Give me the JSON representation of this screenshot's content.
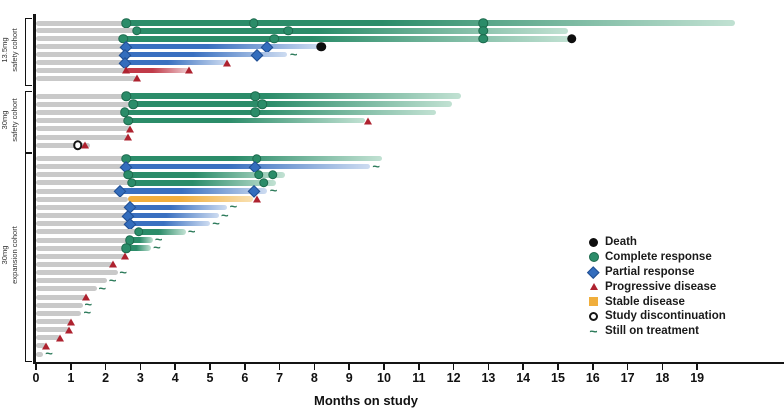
{
  "axis": {
    "xlabel": "Months on study",
    "x_ticks": [
      0,
      1,
      2,
      3,
      4,
      5,
      6,
      7,
      8,
      9,
      10,
      11,
      12,
      13,
      14,
      15,
      16,
      17,
      18,
      19
    ]
  },
  "cohort_labels": [
    {
      "line1": "13.5mg",
      "line2": "safety cohort"
    },
    {
      "line1": "30mg",
      "line2": "safety cohort"
    },
    {
      "line1": "30mg",
      "line2": "expansion cohort"
    }
  ],
  "legend": {
    "items": [
      {
        "marker": "death",
        "label": "Death"
      },
      {
        "marker": "cr",
        "label": "Complete response"
      },
      {
        "marker": "pr",
        "label": "Partial response"
      },
      {
        "marker": "pd",
        "label": "Progressive disease"
      },
      {
        "marker": "sd",
        "label": "Stable disease"
      },
      {
        "marker": "disc",
        "label": "Study discontinuation"
      },
      {
        "marker": "ontx",
        "label": "Still on treatment"
      }
    ]
  },
  "colors": {
    "complete_response": "#2b8c69",
    "partial_response": "#336dbd",
    "progressive_disease": "#ae222f",
    "stable_disease": "#f0ae3c",
    "pretreatment_gray": "#c9c9c9",
    "death": "#0e0e0e"
  },
  "chart_data": {
    "type": "swimmer",
    "xlabel": "Months on study",
    "xlim": [
      0,
      20.2
    ],
    "x_ticks": [
      0,
      1,
      2,
      3,
      4,
      5,
      6,
      7,
      8,
      9,
      10,
      11,
      12,
      13,
      14,
      15,
      16,
      17,
      18,
      19
    ],
    "marker_legend": {
      "cr": "Complete response",
      "pr": "Partial response",
      "pd": "Progressive disease",
      "sd": "Stable disease",
      "death": "Death",
      "disc": "Study discontinuation",
      "ontx": "Still on treatment"
    },
    "cohorts": [
      {
        "label": "13.5mg safety cohort",
        "patients": [
          {
            "pre": 2.6,
            "type": "cr",
            "end": 20.1,
            "ev": [
              {
                "t": "cr",
                "m": 2.6
              },
              {
                "t": "cr",
                "m": 6.25
              },
              {
                "t": "cr",
                "m": 12.85
              }
            ]
          },
          {
            "pre": 2.9,
            "type": "cr",
            "end": 15.3,
            "ev": [
              {
                "t": "cr",
                "m": 2.9
              },
              {
                "t": "cr",
                "m": 7.25
              },
              {
                "t": "cr",
                "m": 12.85
              }
            ]
          },
          {
            "pre": 2.5,
            "type": "cr",
            "end": 15.4,
            "ev": [
              {
                "t": "cr",
                "m": 2.5
              },
              {
                "t": "cr",
                "m": 6.85
              },
              {
                "t": "cr",
                "m": 12.85
              },
              {
                "t": "death",
                "m": 15.4
              }
            ]
          },
          {
            "pre": 2.6,
            "type": "pr",
            "end": 8.2,
            "ev": [
              {
                "t": "pr",
                "m": 2.6
              },
              {
                "t": "pr",
                "m": 6.65
              },
              {
                "t": "death",
                "m": 8.2
              }
            ]
          },
          {
            "pre": 2.55,
            "type": "pr",
            "end": 7.2,
            "ev": [
              {
                "t": "pr",
                "m": 2.55
              },
              {
                "t": "pr",
                "m": 6.35
              },
              {
                "t": "ontx",
                "m": 7.35
              }
            ]
          },
          {
            "pre": 2.55,
            "type": "pr",
            "end": 5.5,
            "ev": [
              {
                "t": "pr",
                "m": 2.55
              },
              {
                "t": "pd",
                "m": 5.5
              }
            ]
          },
          {
            "pre": 2.6,
            "type": "pd",
            "end": 4.4,
            "ev": [
              {
                "t": "pd",
                "m": 2.6
              },
              {
                "t": "pd",
                "m": 4.4
              }
            ]
          },
          {
            "pre": 2.9,
            "type": "none",
            "end": 2.9,
            "ev": [
              {
                "t": "pd",
                "m": 2.9
              }
            ]
          }
        ]
      },
      {
        "label": "30mg safety cohort",
        "patients": [
          {
            "pre": 2.6,
            "type": "cr",
            "end": 12.2,
            "ev": [
              {
                "t": "cr",
                "m": 2.6
              },
              {
                "t": "cr",
                "m": 6.3
              }
            ]
          },
          {
            "pre": 2.8,
            "type": "cr",
            "end": 11.95,
            "ev": [
              {
                "t": "cr",
                "m": 2.8
              },
              {
                "t": "cr",
                "m": 6.5
              }
            ]
          },
          {
            "pre": 2.55,
            "type": "cr",
            "end": 11.5,
            "ev": [
              {
                "t": "cr",
                "m": 2.55
              },
              {
                "t": "cr",
                "m": 6.3
              }
            ]
          },
          {
            "pre": 2.65,
            "type": "cr",
            "end": 9.45,
            "ev": [
              {
                "t": "cr",
                "m": 2.65
              },
              {
                "t": "pd",
                "m": 9.55
              }
            ]
          },
          {
            "pre": 2.7,
            "type": "none",
            "end": 2.7,
            "ev": [
              {
                "t": "pd",
                "m": 2.7
              }
            ]
          },
          {
            "pre": 2.65,
            "type": "none",
            "end": 2.65,
            "ev": [
              {
                "t": "pd",
                "m": 2.65
              }
            ]
          },
          {
            "pre": 1.55,
            "type": "none",
            "end": 1.55,
            "ev": [
              {
                "t": "disc",
                "m": 1.2
              },
              {
                "t": "pd",
                "m": 1.4
              }
            ]
          }
        ]
      },
      {
        "label": "30mg expansion cohort",
        "patients": [
          {
            "pre": 2.6,
            "type": "cr",
            "end": 9.95,
            "ev": [
              {
                "t": "cr",
                "m": 2.6
              },
              {
                "t": "cr",
                "m": 6.35
              }
            ]
          },
          {
            "pre": 2.6,
            "type": "pr",
            "end": 9.6,
            "ev": [
              {
                "t": "pr",
                "m": 2.6
              },
              {
                "t": "pr",
                "m": 6.3
              },
              {
                "t": "ontx",
                "m": 9.72
              }
            ]
          },
          {
            "pre": 2.65,
            "type": "cr",
            "end": 7.15,
            "ev": [
              {
                "t": "cr",
                "m": 2.65
              },
              {
                "t": "cr",
                "m": 6.4
              },
              {
                "t": "cr",
                "m": 6.8
              }
            ]
          },
          {
            "pre": 2.75,
            "type": "cr",
            "end": 6.9,
            "ev": [
              {
                "t": "cr",
                "m": 2.75
              },
              {
                "t": "cr",
                "m": 6.55
              }
            ]
          },
          {
            "pre": 2.4,
            "type": "pr",
            "end": 6.65,
            "ev": [
              {
                "t": "pr",
                "m": 2.4
              },
              {
                "t": "pr",
                "m": 6.25
              },
              {
                "t": "ontx",
                "m": 6.77
              }
            ]
          },
          {
            "pre": 2.65,
            "type": "sd",
            "end": 6.25,
            "ev": [
              {
                "t": "pd",
                "m": 6.35
              }
            ]
          },
          {
            "pre": 2.7,
            "type": "pr",
            "end": 5.5,
            "ev": [
              {
                "t": "pr",
                "m": 2.7
              },
              {
                "t": "ontx",
                "m": 5.62
              }
            ]
          },
          {
            "pre": 2.65,
            "type": "pr",
            "end": 5.25,
            "ev": [
              {
                "t": "pr",
                "m": 2.65
              },
              {
                "t": "ontx",
                "m": 5.37
              }
            ]
          },
          {
            "pre": 2.7,
            "type": "pr",
            "end": 5.0,
            "ev": [
              {
                "t": "pr",
                "m": 2.7
              },
              {
                "t": "ontx",
                "m": 5.12
              }
            ]
          },
          {
            "pre": 2.95,
            "type": "cr",
            "end": 4.3,
            "ev": [
              {
                "t": "cr",
                "m": 2.95
              },
              {
                "t": "ontx",
                "m": 4.42
              }
            ]
          },
          {
            "pre": 2.7,
            "type": "cr",
            "end": 3.35,
            "ev": [
              {
                "t": "cr",
                "m": 2.7
              },
              {
                "t": "ontx",
                "m": 3.47
              }
            ]
          },
          {
            "pre": 2.6,
            "type": "cr",
            "end": 3.3,
            "ev": [
              {
                "t": "cr",
                "m": 2.6
              },
              {
                "t": "ontx",
                "m": 3.42
              }
            ]
          },
          {
            "pre": 2.55,
            "type": "none",
            "end": 2.55,
            "ev": [
              {
                "t": "pd",
                "m": 2.55
              }
            ]
          },
          {
            "pre": 2.2,
            "type": "none",
            "end": 2.2,
            "ev": [
              {
                "t": "pd",
                "m": 2.2
              }
            ]
          },
          {
            "pre": 2.35,
            "type": "none",
            "end": 2.35,
            "ev": [
              {
                "t": "ontx",
                "m": 2.45
              }
            ]
          },
          {
            "pre": 2.05,
            "type": "none",
            "end": 2.05,
            "ev": [
              {
                "t": "ontx",
                "m": 2.15
              }
            ]
          },
          {
            "pre": 1.75,
            "type": "none",
            "end": 1.75,
            "ev": [
              {
                "t": "ontx",
                "m": 1.85
              }
            ]
          },
          {
            "pre": 1.45,
            "type": "none",
            "end": 1.45,
            "ev": [
              {
                "t": "pd",
                "m": 1.45
              }
            ]
          },
          {
            "pre": 1.35,
            "type": "none",
            "end": 1.35,
            "ev": [
              {
                "t": "ontx",
                "m": 1.45
              }
            ]
          },
          {
            "pre": 1.3,
            "type": "none",
            "end": 1.3,
            "ev": [
              {
                "t": "ontx",
                "m": 1.42
              }
            ]
          },
          {
            "pre": 1.0,
            "type": "none",
            "end": 1.0,
            "ev": [
              {
                "t": "pd",
                "m": 1.0
              }
            ]
          },
          {
            "pre": 0.95,
            "type": "none",
            "end": 0.95,
            "ev": [
              {
                "t": "pd",
                "m": 0.95
              }
            ]
          },
          {
            "pre": 0.7,
            "type": "none",
            "end": 0.7,
            "ev": [
              {
                "t": "pd",
                "m": 0.7
              }
            ]
          },
          {
            "pre": 0.3,
            "type": "none",
            "end": 0.3,
            "ev": [
              {
                "t": "pd",
                "m": 0.3
              }
            ]
          },
          {
            "pre": 0.2,
            "type": "none",
            "end": 0.2,
            "ev": [
              {
                "t": "ontx",
                "m": 0.32
              }
            ]
          }
        ]
      }
    ]
  }
}
